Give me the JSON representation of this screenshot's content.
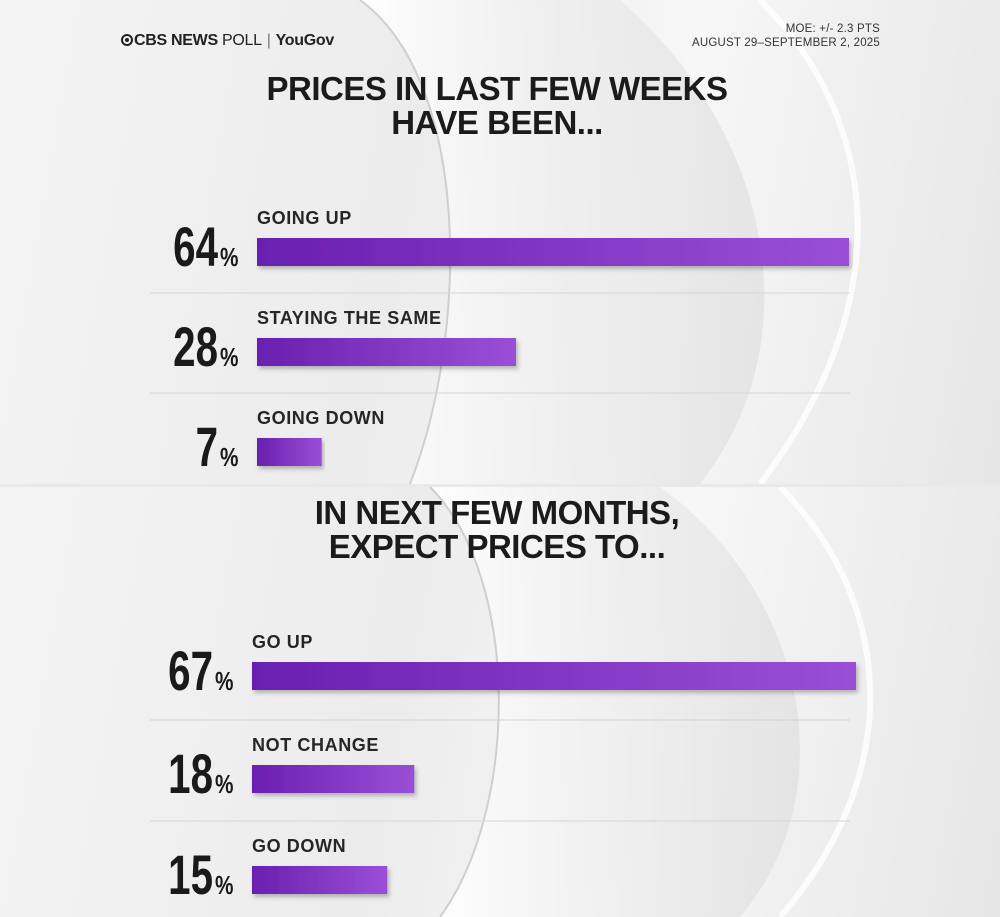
{
  "header": {
    "brand_primary": "CBS NEWS",
    "brand_secondary": "POLL",
    "partner": "YouGov",
    "moe": "MOE: +/- 2.3 PTS",
    "dates": "AUGUST 29–SEPTEMBER 2, 2025"
  },
  "colors": {
    "bar_start": "#6a1fb0",
    "bar_end": "#9a4fd6",
    "text": "#1a1a1a",
    "divider": "#d4d4d4"
  },
  "chart_data": [
    {
      "type": "bar",
      "orientation": "horizontal",
      "title_lines": [
        "PRICES IN LAST FEW WEEKS",
        "HAVE BEEN..."
      ],
      "categories": [
        "GOING UP",
        "STAYING THE SAME",
        "GOING DOWN"
      ],
      "values": [
        64,
        28,
        7
      ],
      "value_labels": [
        "64",
        "28",
        "7"
      ],
      "unit": "%",
      "xlim": [
        0,
        64
      ]
    },
    {
      "type": "bar",
      "orientation": "horizontal",
      "title_lines": [
        "IN NEXT FEW MONTHS,",
        "EXPECT PRICES TO..."
      ],
      "categories": [
        "GO UP",
        "NOT CHANGE",
        "GO DOWN"
      ],
      "values": [
        67,
        18,
        15
      ],
      "value_labels": [
        "67",
        "18",
        "15"
      ],
      "unit": "%",
      "xlim": [
        0,
        67
      ]
    }
  ]
}
